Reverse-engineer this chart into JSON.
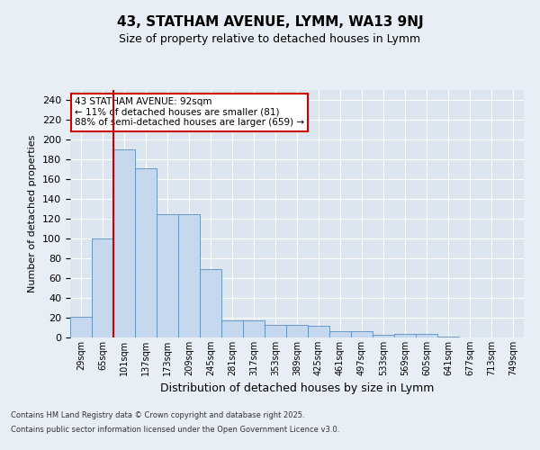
{
  "title": "43, STATHAM AVENUE, LYMM, WA13 9NJ",
  "subtitle": "Size of property relative to detached houses in Lymm",
  "xlabel": "Distribution of detached houses by size in Lymm",
  "ylabel": "Number of detached properties",
  "categories": [
    "29sqm",
    "65sqm",
    "101sqm",
    "137sqm",
    "173sqm",
    "209sqm",
    "245sqm",
    "281sqm",
    "317sqm",
    "353sqm",
    "389sqm",
    "425sqm",
    "461sqm",
    "497sqm",
    "533sqm",
    "569sqm",
    "605sqm",
    "641sqm",
    "677sqm",
    "713sqm",
    "749sqm"
  ],
  "values": [
    21,
    100,
    190,
    171,
    125,
    125,
    69,
    17,
    17,
    13,
    13,
    12,
    6,
    6,
    3,
    4,
    4,
    1,
    0,
    0,
    0
  ],
  "bar_color": "#c5d8ed",
  "bar_edge_color": "#5a8fc2",
  "annotation_box_color": "#ffffff",
  "annotation_box_edge": "#cc0000",
  "annotation_text_line1": "43 STATHAM AVENUE: 92sqm",
  "annotation_text_line2": "← 11% of detached houses are smaller (81)",
  "annotation_text_line3": "88% of semi-detached houses are larger (659) →",
  "red_line_color": "#cc0000",
  "background_color": "#e8eef5",
  "plot_background": "#dce6f0",
  "footer_line1": "Contains HM Land Registry data © Crown copyright and database right 2025.",
  "footer_line2": "Contains public sector information licensed under the Open Government Licence v3.0.",
  "ylim": [
    0,
    250
  ],
  "yticks": [
    0,
    20,
    40,
    60,
    80,
    100,
    120,
    140,
    160,
    180,
    200,
    220,
    240
  ],
  "title_fontsize": 11,
  "subtitle_fontsize": 9,
  "ylabel_fontsize": 8,
  "xlabel_fontsize": 9,
  "tick_fontsize": 7,
  "footer_fontsize": 6,
  "annot_fontsize": 7.5
}
